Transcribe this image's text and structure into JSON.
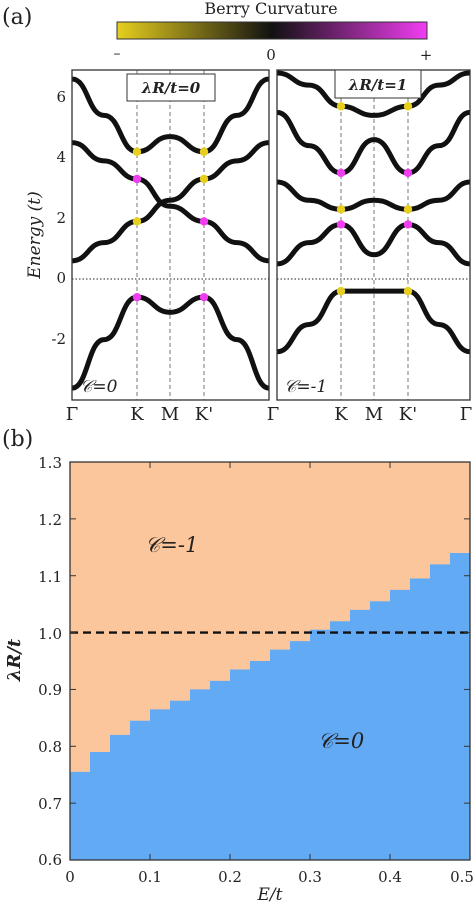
{
  "panel_a": {
    "label": "(a)",
    "colorbar": {
      "title": "Berry Curvature",
      "min_label": "–",
      "zero_label": "0",
      "max_label": "+",
      "colors": {
        "negative": "#e6cf1e",
        "zero": "#111111",
        "positive": "#f23cf2"
      }
    },
    "y_axis_label": "Energy (t)",
    "y_ticks": [
      "6",
      "4",
      "2",
      "0",
      "-2"
    ],
    "k_ticks": [
      "Γ",
      "K",
      "M",
      "K'",
      "Γ"
    ],
    "left": {
      "title": "λR/t=0",
      "chern": "𝒞=0",
      "bands": [
        [
          6.6,
          5.4,
          4.2,
          4.7,
          4.2,
          5.4,
          6.6
        ],
        [
          4.5,
          3.9,
          3.3,
          2.4,
          1.9,
          1.2,
          0.6
        ],
        [
          0.6,
          1.2,
          1.9,
          2.6,
          3.3,
          3.9,
          4.5
        ],
        [
          -3.6,
          -2.0,
          -0.6,
          -1.1,
          -0.6,
          -2.0,
          -3.6
        ]
      ]
    },
    "right": {
      "title": "λR/t=1",
      "chern": "𝒞=-1",
      "bands": [
        [
          6.8,
          6.4,
          5.7,
          5.4,
          5.7,
          6.4,
          6.8
        ],
        [
          5.5,
          4.4,
          3.5,
          4.6,
          3.5,
          4.4,
          5.5
        ],
        [
          3.2,
          2.6,
          2.3,
          2.6,
          2.3,
          2.6,
          3.2
        ],
        [
          0.5,
          1.2,
          1.8,
          0.8,
          1.8,
          1.2,
          0.5
        ],
        [
          -2.4,
          -1.5,
          -0.4,
          -0.4,
          -0.4,
          -1.5,
          -2.4
        ]
      ]
    }
  },
  "panel_b": {
    "label": "(b)",
    "chart_data": {
      "type": "heatmap",
      "xlabel": "E/t",
      "ylabel": "λR/t",
      "xlim": [
        0,
        0.5
      ],
      "ylim": [
        0.6,
        1.3
      ],
      "x_ticks": [
        "0",
        "0.1",
        "0.2",
        "0.3",
        "0.4",
        "0.5"
      ],
      "y_ticks": [
        "1.3",
        "1.2",
        "1.1",
        "1.0",
        "0.9",
        "0.8",
        "0.7",
        "0.6"
      ],
      "region_upper": {
        "label": "𝒞=-1",
        "color": "#fbc69b"
      },
      "region_lower": {
        "label": "𝒞=0",
        "color": "#63aaf5"
      },
      "reference_line_y": 1.0,
      "boundary": {
        "x": [
          0.0,
          0.025,
          0.05,
          0.075,
          0.1,
          0.125,
          0.15,
          0.175,
          0.2,
          0.225,
          0.25,
          0.275,
          0.3,
          0.325,
          0.35,
          0.375,
          0.4,
          0.425,
          0.45,
          0.475,
          0.5
        ],
        "y": [
          0.755,
          0.79,
          0.82,
          0.845,
          0.865,
          0.88,
          0.9,
          0.915,
          0.935,
          0.95,
          0.97,
          0.985,
          1.005,
          1.02,
          1.04,
          1.055,
          1.075,
          1.095,
          1.12,
          1.14,
          1.15
        ]
      }
    }
  }
}
